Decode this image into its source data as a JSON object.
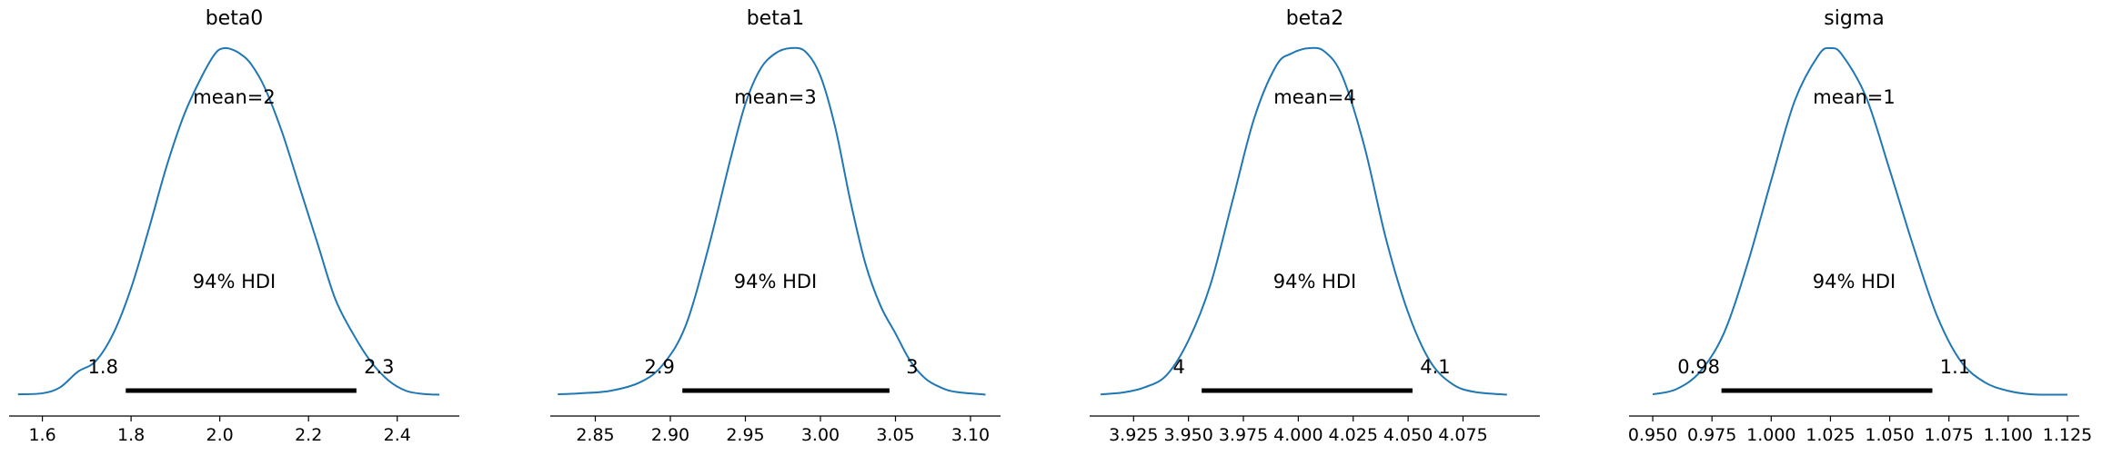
{
  "chart_data": [
    {
      "type": "area",
      "title": "beta0",
      "mean_label": "mean=2",
      "hdi_label": "94% HDI",
      "hdi_low_label": "1.8",
      "hdi_high_label": "2.3",
      "hdi": [
        1.788,
        2.308
      ],
      "xlim": [
        1.525,
        2.54
      ],
      "xticks": [
        "1.6",
        "1.8",
        "2.0",
        "2.2",
        "2.4"
      ],
      "xtick_values": [
        1.6,
        1.8,
        2.0,
        2.2,
        2.4
      ],
      "kde": {
        "x": [
          1.545,
          1.6,
          1.64,
          1.68,
          1.72,
          1.76,
          1.8,
          1.84,
          1.88,
          1.92,
          1.96,
          1.99,
          2.01,
          2.03,
          2.05,
          2.07,
          2.1,
          2.14,
          2.18,
          2.22,
          2.26,
          2.3,
          2.34,
          2.38,
          2.42,
          2.46,
          2.495
        ],
        "density": [
          0.005,
          0.008,
          0.025,
          0.07,
          0.1,
          0.18,
          0.31,
          0.48,
          0.66,
          0.81,
          0.92,
          0.985,
          1.0,
          0.995,
          0.98,
          0.955,
          0.89,
          0.76,
          0.6,
          0.44,
          0.28,
          0.18,
          0.1,
          0.045,
          0.015,
          0.006,
          0.004
        ]
      }
    },
    {
      "type": "area",
      "title": "beta1",
      "mean_label": "mean=3",
      "hdi_label": "94% HDI",
      "hdi_low_label": "2.9",
      "hdi_high_label": "3",
      "hdi": [
        2.908,
        3.046
      ],
      "xlim": [
        2.82,
        3.12
      ],
      "xticks": [
        "2.85",
        "2.90",
        "2.95",
        "3.00",
        "3.05",
        "3.10"
      ],
      "xtick_values": [
        2.85,
        2.9,
        2.95,
        3.0,
        3.05,
        3.1
      ],
      "kde": {
        "x": [
          2.825,
          2.84,
          2.86,
          2.88,
          2.895,
          2.91,
          2.925,
          2.94,
          2.95,
          2.96,
          2.97,
          2.98,
          2.99,
          3.0,
          3.01,
          3.02,
          3.03,
          3.04,
          3.05,
          3.06,
          3.07,
          3.08,
          3.09,
          3.11
        ],
        "density": [
          0.005,
          0.008,
          0.015,
          0.04,
          0.09,
          0.2,
          0.42,
          0.68,
          0.84,
          0.94,
          0.985,
          1.0,
          0.99,
          0.92,
          0.77,
          0.56,
          0.38,
          0.26,
          0.18,
          0.1,
          0.05,
          0.025,
          0.012,
          0.004
        ]
      }
    },
    {
      "type": "area",
      "title": "beta2",
      "mean_label": "mean=4",
      "hdi_label": "94% HDI",
      "hdi_low_label": "4",
      "hdi_high_label": "4.1",
      "hdi": [
        3.956,
        4.052
      ],
      "xlim": [
        3.905,
        4.11
      ],
      "xticks": [
        "3.925",
        "3.950",
        "3.975",
        "4.000",
        "4.025",
        "4.050",
        "4.075"
      ],
      "xtick_values": [
        3.925,
        3.95,
        3.975,
        4.0,
        4.025,
        4.05,
        4.075
      ],
      "kde": {
        "x": [
          3.91,
          3.92,
          3.93,
          3.94,
          3.95,
          3.96,
          3.97,
          3.98,
          3.99,
          3.997,
          4.005,
          4.012,
          4.02,
          4.03,
          4.04,
          4.05,
          4.06,
          4.07,
          4.08,
          4.095
        ],
        "density": [
          0.005,
          0.01,
          0.025,
          0.06,
          0.16,
          0.32,
          0.56,
          0.8,
          0.95,
          0.985,
          1.0,
          0.99,
          0.92,
          0.72,
          0.45,
          0.24,
          0.1,
          0.035,
          0.012,
          0.004
        ]
      }
    },
    {
      "type": "area",
      "title": "sigma",
      "mean_label": "mean=1",
      "hdi_label": "94% HDI",
      "hdi_low_label": "0.98",
      "hdi_high_label": "1.1",
      "hdi": [
        0.979,
        1.068
      ],
      "xlim": [
        0.94,
        1.13
      ],
      "xticks": [
        "0.950",
        "0.975",
        "1.000",
        "1.025",
        "1.050",
        "1.075",
        "1.100",
        "1.125"
      ],
      "xtick_values": [
        0.95,
        0.975,
        1.0,
        1.025,
        1.05,
        1.075,
        1.1,
        1.125
      ],
      "kde": {
        "x": [
          0.95,
          0.96,
          0.97,
          0.98,
          0.99,
          1.0,
          1.01,
          1.02,
          1.025,
          1.03,
          1.04,
          1.05,
          1.06,
          1.07,
          1.08,
          1.09,
          1.1,
          1.11,
          1.125
        ],
        "density": [
          0.005,
          0.02,
          0.07,
          0.18,
          0.38,
          0.62,
          0.85,
          0.98,
          1.0,
          0.98,
          0.86,
          0.65,
          0.43,
          0.23,
          0.1,
          0.04,
          0.015,
          0.005,
          0.004
        ]
      }
    }
  ],
  "colors": {
    "curve": "#1f77b4",
    "hdi_bar": "#000000",
    "axis": "#000000"
  }
}
